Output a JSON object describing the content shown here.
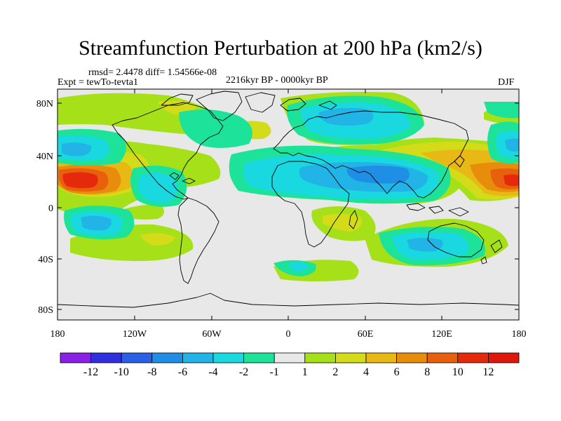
{
  "title": "Streamfunction Perturbation at 200 hPa (km2/s)",
  "stats": "rmsd= 2.4478 diff= 1.54566e-08",
  "experiment": "Expt = tewTo-tevta1",
  "period": "2216kyr BP - 0000kyr BP",
  "season": "DJF",
  "axes": {
    "y_ticks": [
      "80N",
      "40N",
      "0",
      "40S",
      "80S"
    ],
    "x_ticks": [
      "180",
      "120W",
      "60W",
      "0",
      "60E",
      "120E",
      "180"
    ]
  },
  "colorbar": {
    "labels": [
      "-12",
      "-10",
      "-8",
      "-6",
      "-4",
      "-2",
      "-1",
      "1",
      "2",
      "4",
      "6",
      "8",
      "10",
      "12"
    ],
    "colors": [
      "#8a1fe6",
      "#2f2fe0",
      "#2a5fe6",
      "#1f8fe6",
      "#22b4e6",
      "#19d8e0",
      "#1de39a",
      "#e8e8e8",
      "#a6e019",
      "#d4dc1a",
      "#e8b814",
      "#e88c0c",
      "#e8600c",
      "#e52a0c",
      "#e0170c"
    ]
  },
  "colors": {
    "background": "#e8e8e8",
    "coast": "#000000"
  }
}
